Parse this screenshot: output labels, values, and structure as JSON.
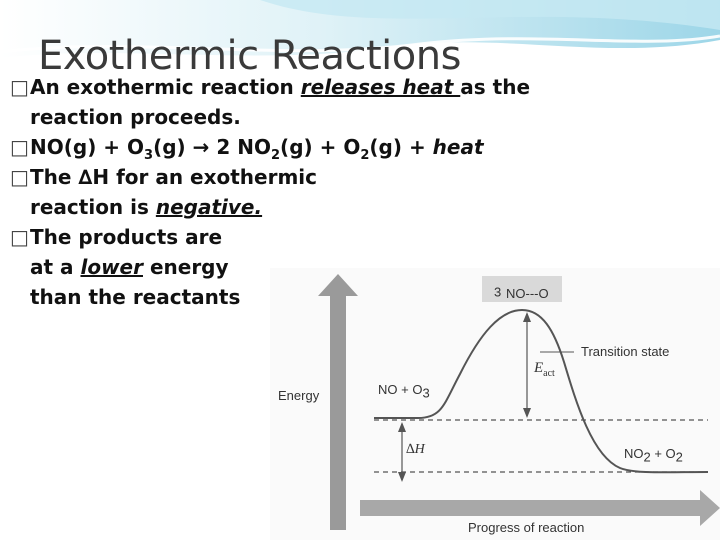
{
  "slide": {
    "title": "Exothermic Reactions",
    "banner_color": "#b8e3ef"
  },
  "bullets": {
    "b1_prefix": "An exothermic reaction ",
    "b1_emph": "releases heat ",
    "b1_suffix": "as the",
    "b1_line2": "reaction proceeds.",
    "b2_a": "NO(g) + O",
    "b2_a_sub": "3",
    "b2_b": "(g)  ",
    "b2_arrow": "→",
    "b2_c": "  2 NO",
    "b2_c_sub": "2",
    "b2_d": "(g) + O",
    "b2_d_sub": "2",
    "b2_e": "(g) + ",
    "b2_heat": "heat",
    "b3_prefix": "The ",
    "b3_delta": "∆H",
    "b3_suffix": " for an exothermic",
    "b3_line2_prefix": "reaction is ",
    "b3_line2_emph": "negative.",
    "b4_line1": "The products are",
    "b4_line2_prefix": "at a ",
    "b4_line2_emph": "lower",
    "b4_line2_suffix": " energy",
    "b4_line3": "than the reactants",
    "bullet_glyph": "□"
  },
  "diagram": {
    "energy_label": "Energy",
    "progress_label": "Progress of reaction",
    "complex_label_a": "NO---O",
    "complex_label_sub": "3",
    "transition_label": "Transition state",
    "reactants_a": "NO + O",
    "reactants_sub": "3",
    "products_a": "NO",
    "products_sub1": "2",
    "products_b": " + O",
    "products_sub2": "2",
    "fact_main": "E",
    "fact_sub": "act",
    "dh_delta": "∆",
    "dh_h": "H",
    "arrow_color": "#8a8a8a",
    "curve_color": "#555555"
  }
}
